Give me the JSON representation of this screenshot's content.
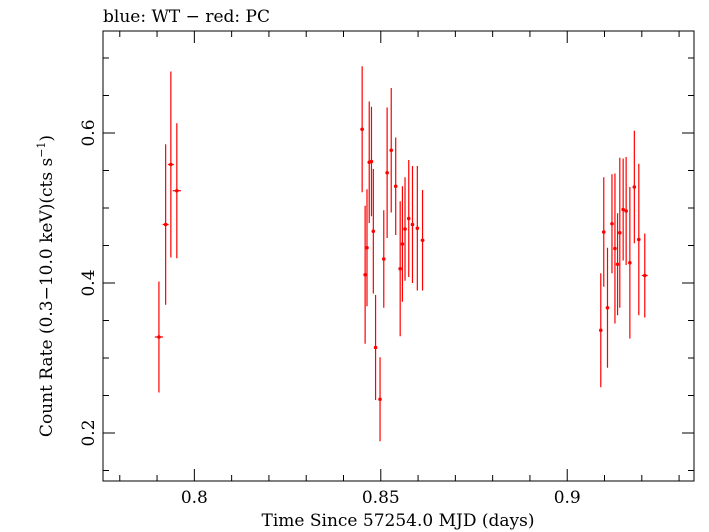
{
  "chart_data": {
    "type": "scatter",
    "title": "blue: WT − red: PC",
    "xlabel": "Time Since 57254.0 MJD (days)",
    "ylabel_main": "Count Rate (0.3−10.0 keV)(cts s",
    "ylabel_sup": "−1",
    "ylabel_end": ")",
    "xlim": [
      0.7755,
      0.934
    ],
    "ylim": [
      0.136,
      0.736
    ],
    "xticks": [
      0.8,
      0.85,
      0.9
    ],
    "xtick_labels": [
      "0.8",
      "0.85",
      "0.9"
    ],
    "yticks": [
      0.2,
      0.4,
      0.6
    ],
    "ytick_labels": [
      "0.2",
      "0.4",
      "0.6"
    ],
    "grid": false,
    "series": [
      {
        "color": "#ff0000",
        "points": [
          {
            "x": 0.7905,
            "y": 0.328,
            "yerr": 0.074,
            "xerr": 0.0011
          },
          {
            "x": 0.7923,
            "y": 0.478,
            "yerr": 0.107,
            "xerr": 0.0008
          },
          {
            "x": 0.7937,
            "y": 0.558,
            "yerr": 0.124,
            "xerr": 0.0008
          },
          {
            "x": 0.7953,
            "y": 0.523,
            "yerr": 0.09,
            "xerr": 0.0011
          },
          {
            "x": 0.845,
            "y": 0.605,
            "yerr": 0.084,
            "xerr": 0.0005
          },
          {
            "x": 0.8458,
            "y": 0.411,
            "yerr": 0.092,
            "xerr": 0.0003
          },
          {
            "x": 0.8463,
            "y": 0.447,
            "yerr": 0.078,
            "xerr": 0.0003
          },
          {
            "x": 0.8469,
            "y": 0.561,
            "yerr": 0.081,
            "xerr": 0.0003
          },
          {
            "x": 0.8475,
            "y": 0.562,
            "yerr": 0.073,
            "xerr": 0.0003
          },
          {
            "x": 0.848,
            "y": 0.469,
            "yerr": 0.083,
            "xerr": 0.0003
          },
          {
            "x": 0.8486,
            "y": 0.314,
            "yerr": 0.07,
            "xerr": 0.0003
          },
          {
            "x": 0.8498,
            "y": 0.245,
            "yerr": 0.056,
            "xerr": 0.0003
          },
          {
            "x": 0.8508,
            "y": 0.432,
            "yerr": 0.065,
            "xerr": 0.0003
          },
          {
            "x": 0.8517,
            "y": 0.547,
            "yerr": 0.087,
            "xerr": 0.0003
          },
          {
            "x": 0.8528,
            "y": 0.577,
            "yerr": 0.083,
            "xerr": 0.0003
          },
          {
            "x": 0.854,
            "y": 0.529,
            "yerr": 0.065,
            "xerr": 0.0003
          },
          {
            "x": 0.8552,
            "y": 0.419,
            "yerr": 0.09,
            "xerr": 0.0003
          },
          {
            "x": 0.8558,
            "y": 0.452,
            "yerr": 0.077,
            "xerr": 0.0003
          },
          {
            "x": 0.8565,
            "y": 0.472,
            "yerr": 0.069,
            "xerr": 0.0003
          },
          {
            "x": 0.8575,
            "y": 0.486,
            "yerr": 0.078,
            "xerr": 0.0003
          },
          {
            "x": 0.8585,
            "y": 0.478,
            "yerr": 0.078,
            "xerr": 0.0003
          },
          {
            "x": 0.8598,
            "y": 0.473,
            "yerr": 0.083,
            "xerr": 0.0003
          },
          {
            "x": 0.8612,
            "y": 0.457,
            "yerr": 0.067,
            "xerr": 0.0005
          },
          {
            "x": 0.909,
            "y": 0.337,
            "yerr": 0.076,
            "xerr": 0.0003
          },
          {
            "x": 0.9098,
            "y": 0.468,
            "yerr": 0.073,
            "xerr": 0.0003
          },
          {
            "x": 0.9108,
            "y": 0.367,
            "yerr": 0.08,
            "xerr": 0.0003
          },
          {
            "x": 0.912,
            "y": 0.479,
            "yerr": 0.066,
            "xerr": 0.0003
          },
          {
            "x": 0.9128,
            "y": 0.446,
            "yerr": 0.1,
            "xerr": 0.0003
          },
          {
            "x": 0.9135,
            "y": 0.425,
            "yerr": 0.068,
            "xerr": 0.0003
          },
          {
            "x": 0.9141,
            "y": 0.467,
            "yerr": 0.1,
            "xerr": 0.0003
          },
          {
            "x": 0.915,
            "y": 0.498,
            "yerr": 0.068,
            "xerr": 0.0003
          },
          {
            "x": 0.9158,
            "y": 0.496,
            "yerr": 0.072,
            "xerr": 0.0003
          },
          {
            "x": 0.9168,
            "y": 0.427,
            "yerr": 0.101,
            "xerr": 0.0003
          },
          {
            "x": 0.918,
            "y": 0.528,
            "yerr": 0.075,
            "xerr": 0.0004
          },
          {
            "x": 0.9192,
            "y": 0.458,
            "yerr": 0.101,
            "xerr": 0.0004
          },
          {
            "x": 0.9208,
            "y": 0.41,
            "yerr": 0.056,
            "xerr": 0.0008
          }
        ]
      }
    ]
  }
}
